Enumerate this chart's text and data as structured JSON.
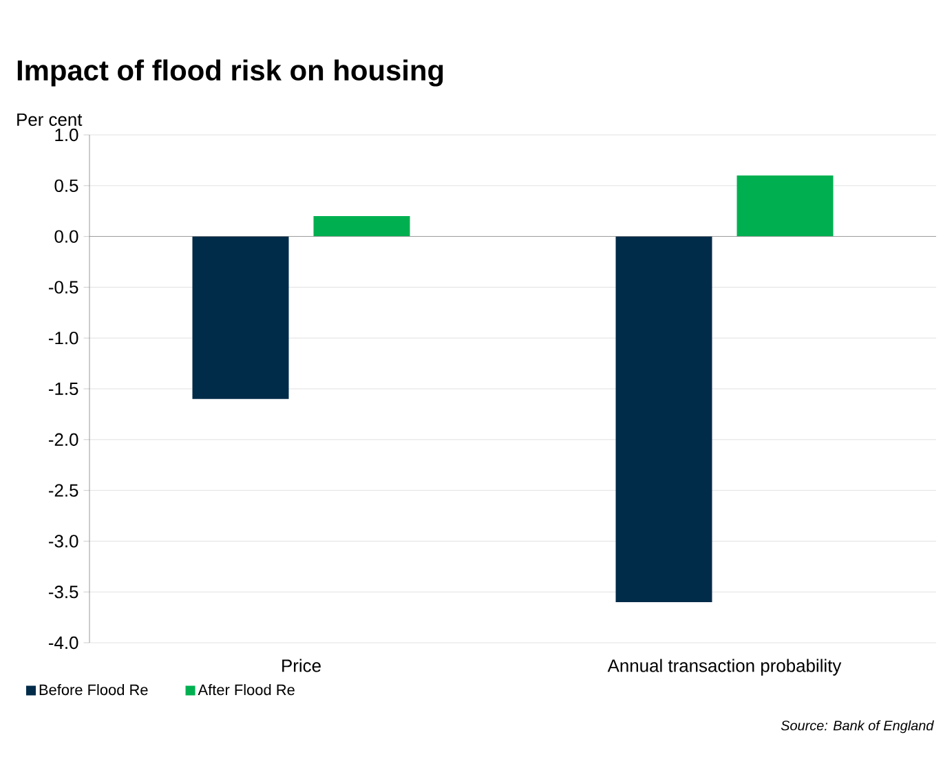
{
  "chart_data": {
    "type": "bar",
    "title": "Impact of flood risk on housing",
    "ylabel": "Per cent",
    "categories": [
      "Price",
      "Annual transaction probability"
    ],
    "series": [
      {
        "name": "Before Flood Re",
        "color": "#002b49",
        "values": [
          -1.6,
          -3.6
        ]
      },
      {
        "name": "After Flood Re",
        "color": "#00b050",
        "values": [
          0.2,
          0.6
        ]
      }
    ],
    "ylim": [
      -4.0,
      1.0
    ],
    "yticks": [
      {
        "value": -4,
        "label": "-4.0"
      },
      {
        "value": -3.5,
        "label": "-3.5"
      },
      {
        "value": -3,
        "label": "-3.0"
      },
      {
        "value": -2.5,
        "label": "-2.5"
      },
      {
        "value": -2,
        "label": "-2.0"
      },
      {
        "value": -1.5,
        "label": "-1.5"
      },
      {
        "value": -1,
        "label": "-1.0"
      },
      {
        "value": -0.5,
        "label": "-0.5"
      },
      {
        "value": 0,
        "label": "0.0"
      },
      {
        "value": 0.5,
        "label": "0.5"
      },
      {
        "value": 1,
        "label": "1.0"
      }
    ],
    "grid": "y",
    "legend": "bottom",
    "annotations": [
      "*Source: Bank of England*"
    ]
  }
}
